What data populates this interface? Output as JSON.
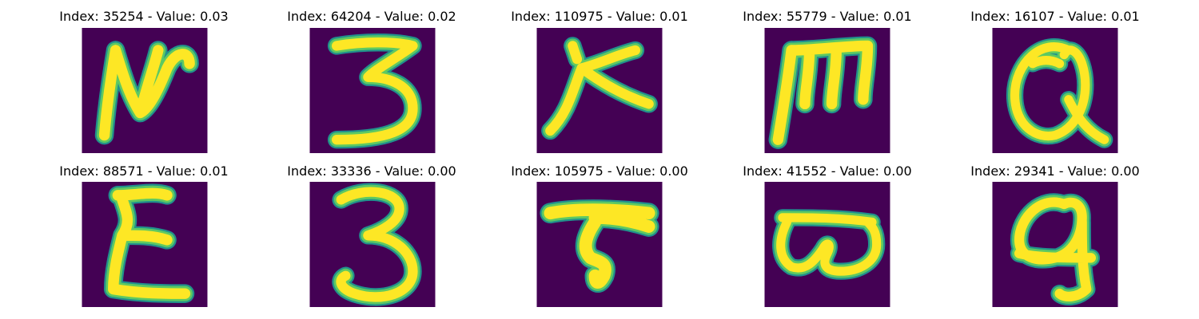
{
  "colors": {
    "background": "#440154",
    "stroke_core": "#fde725",
    "stroke_mid": "#5ec962",
    "stroke_edge": "#21918c"
  },
  "tiles": [
    {
      "title": "Index: 35254 - Value: 0.03",
      "glyph": "handwritten-N"
    },
    {
      "title": "Index: 64204 - Value: 0.02",
      "glyph": "handwritten-3"
    },
    {
      "title": "Index: 110975 - Value: 0.01",
      "glyph": "handwritten-K"
    },
    {
      "title": "Index: 55779 - Value: 0.01",
      "glyph": "handwritten-m"
    },
    {
      "title": "Index: 16107 - Value: 0.01",
      "glyph": "handwritten-Q"
    },
    {
      "title": "Index: 88571 - Value: 0.01",
      "glyph": "handwritten-E"
    },
    {
      "title": "Index: 33336 - Value: 0.00",
      "glyph": "handwritten-3"
    },
    {
      "title": "Index: 105975 - Value: 0.00",
      "glyph": "handwritten-T"
    },
    {
      "title": "Index: 41552 - Value: 0.00",
      "glyph": "handwritten-w"
    },
    {
      "title": "Index: 29341 - Value: 0.00",
      "glyph": "handwritten-q"
    }
  ]
}
